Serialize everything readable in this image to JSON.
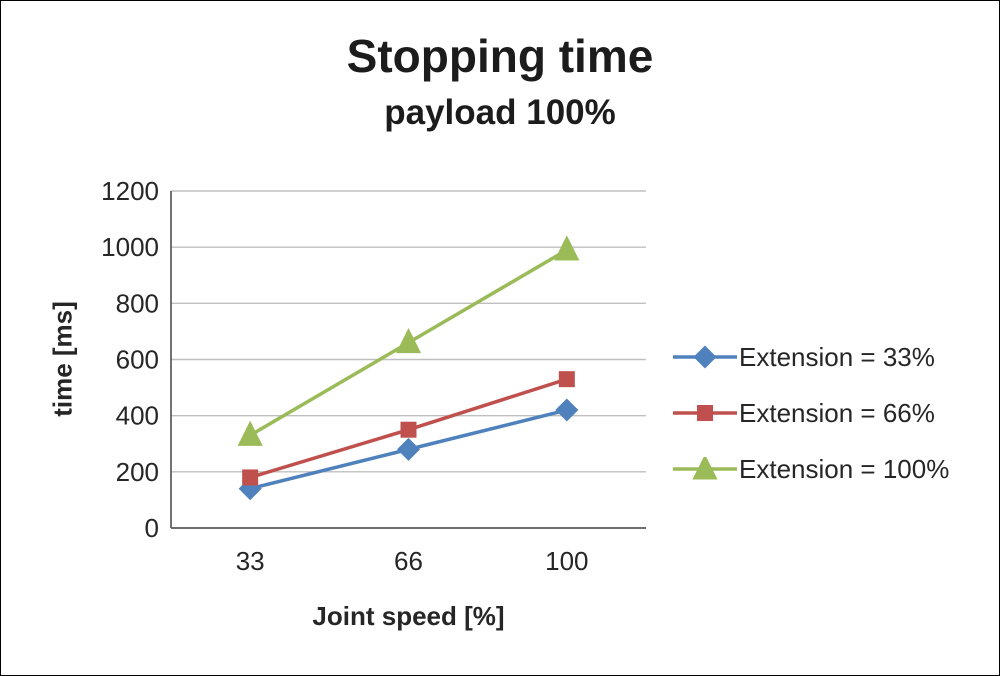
{
  "chart_data": {
    "type": "line",
    "title": "Stopping time",
    "subtitle": "payload 100%",
    "xlabel": "Joint speed [%]",
    "ylabel": "time [ms]",
    "categories": [
      "33",
      "66",
      "100"
    ],
    "yticks": [
      0,
      200,
      400,
      600,
      800,
      1000,
      1200
    ],
    "ylim": [
      0,
      1200
    ],
    "grid": true,
    "legend_position": "right",
    "series": [
      {
        "name": "Extension = 33%",
        "values": [
          140,
          280,
          420
        ],
        "color": "#4F81BD",
        "marker": "diamond"
      },
      {
        "name": "Extension = 66%",
        "values": [
          180,
          350,
          530
        ],
        "color": "#C0504D",
        "marker": "square"
      },
      {
        "name": "Extension = 100%",
        "values": [
          330,
          660,
          990
        ],
        "color": "#9BBB59",
        "marker": "triangle"
      }
    ],
    "colors": {
      "gridline": "#BFBFBF",
      "axis": "#595959",
      "text": "#262626"
    }
  }
}
